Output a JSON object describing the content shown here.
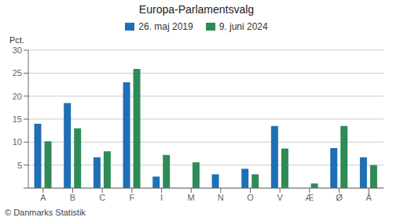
{
  "chart_data": {
    "type": "bar",
    "title": "Europa-Parlamentsvalg",
    "ylabel": "Pct.",
    "categories": [
      "A",
      "B",
      "C",
      "F",
      "I",
      "M",
      "N",
      "O",
      "V",
      "Æ",
      "Ø",
      "Å"
    ],
    "series": [
      {
        "name": "26. maj 2019",
        "color": "#1f6fb5",
        "values": [
          14.0,
          18.5,
          6.7,
          23.0,
          2.5,
          0,
          3.0,
          4.2,
          13.5,
          0,
          8.7,
          6.7
        ]
      },
      {
        "name": "9. juni 2024",
        "color": "#2e8b57",
        "values": [
          10.2,
          13.0,
          8.0,
          25.9,
          7.2,
          5.6,
          0,
          3.0,
          8.6,
          1.0,
          13.5,
          5.0
        ]
      }
    ],
    "ylim": [
      0,
      30
    ],
    "yticks": [
      {
        "value": 0,
        "label": null
      },
      5,
      10,
      15,
      20,
      25,
      30
    ],
    "grid": true,
    "legend": "top",
    "annotations": [
      "© Danmarks Statistik"
    ]
  }
}
